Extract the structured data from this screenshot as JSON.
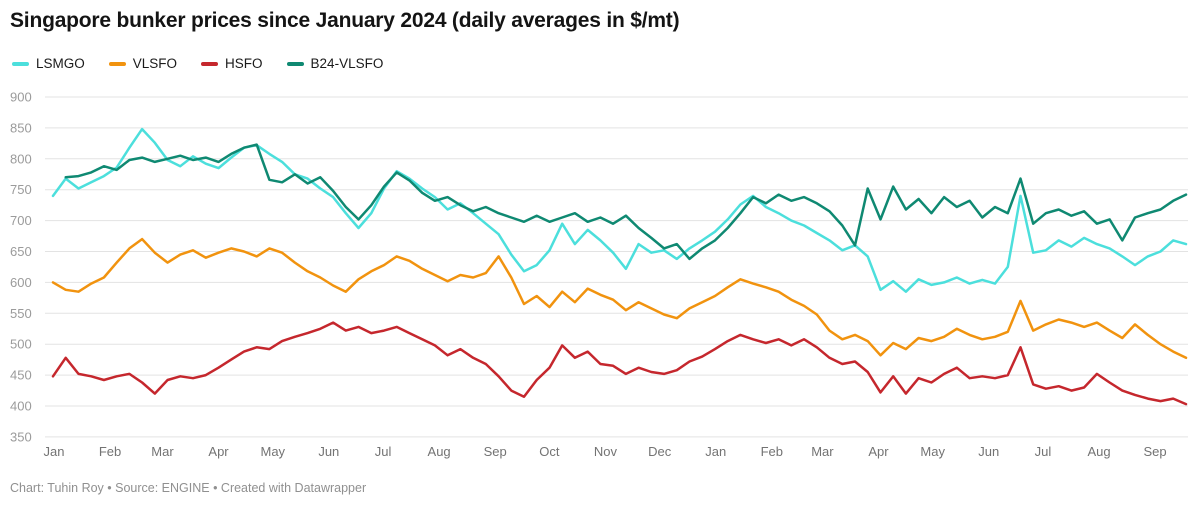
{
  "title": "Singapore bunker prices since January 2024 (daily averages in $/mt)",
  "footer": "Chart: Tuhin Roy • Source: ENGINE • Created with Datawrapper",
  "legend": {
    "items": [
      {
        "label": "LSMGO",
        "color": "#4cdfdc"
      },
      {
        "label": "VLSFO",
        "color": "#f1930f"
      },
      {
        "label": "HSFO",
        "color": "#c5272d"
      },
      {
        "label": "B24-VLSFO",
        "color": "#0f8972"
      }
    ]
  },
  "chart_data": {
    "type": "line",
    "title": "Singapore bunker prices since January 2024 (daily averages in $/mt)",
    "unit": "$/mt",
    "sampling": "weekly estimated averages, Jan 2024 - mid Sep 2025",
    "grid": "horizontal only",
    "legend_position": "top-left",
    "x_axis": {
      "start": "Jan 2024",
      "end": "Sep 2025",
      "months": [
        "Jan",
        "Feb",
        "Mar",
        "Apr",
        "May",
        "Jun",
        "Jul",
        "Aug",
        "Sep",
        "Oct",
        "Nov",
        "Dec",
        "Jan",
        "Feb",
        "Mar",
        "Apr",
        "May",
        "Jun",
        "Jul",
        "Aug",
        "Sep"
      ],
      "month_start_days": [
        0,
        31,
        60,
        91,
        121,
        152,
        182,
        213,
        244,
        274,
        305,
        335,
        366,
        397,
        425,
        456,
        486,
        517,
        547,
        578,
        609
      ]
    },
    "y_axis": {
      "min": 350,
      "max": 900,
      "step": 50,
      "ticks": [
        900,
        850,
        800,
        750,
        700,
        650,
        600,
        550,
        500,
        450,
        400,
        350
      ]
    },
    "series": [
      {
        "name": "LSMGO",
        "color": "#4cdfdc",
        "start_week": 0,
        "values": [
          740,
          768,
          752,
          762,
          772,
          786,
          818,
          848,
          826,
          798,
          788,
          804,
          792,
          785,
          802,
          818,
          822,
          808,
          795,
          775,
          768,
          752,
          738,
          712,
          688,
          712,
          752,
          780,
          768,
          752,
          738,
          718,
          728,
          712,
          695,
          678,
          645,
          618,
          628,
          652,
          695,
          662,
          685,
          668,
          648,
          622,
          662,
          648,
          652,
          638,
          655,
          668,
          682,
          702,
          726,
          740,
          722,
          712,
          700,
          692,
          680,
          668,
          652,
          660,
          642,
          588,
          602,
          585,
          605,
          596,
          600,
          608,
          598,
          604,
          598,
          625,
          740,
          648,
          652,
          668,
          658,
          672,
          662,
          655,
          642,
          628,
          642,
          650,
          668,
          662
        ]
      },
      {
        "name": "VLSFO",
        "color": "#f1930f",
        "start_week": 0,
        "values": [
          600,
          588,
          585,
          598,
          608,
          632,
          655,
          670,
          648,
          632,
          645,
          652,
          640,
          648,
          655,
          650,
          642,
          655,
          648,
          632,
          618,
          608,
          595,
          585,
          605,
          618,
          628,
          642,
          635,
          622,
          612,
          602,
          612,
          608,
          615,
          642,
          608,
          565,
          578,
          560,
          585,
          568,
          590,
          580,
          572,
          555,
          568,
          558,
          548,
          542,
          558,
          568,
          578,
          592,
          605,
          598,
          592,
          585,
          572,
          562,
          548,
          522,
          508,
          515,
          505,
          482,
          502,
          492,
          510,
          505,
          512,
          525,
          515,
          508,
          512,
          520,
          570,
          522,
          532,
          540,
          535,
          528,
          535,
          522,
          510,
          532,
          515,
          500,
          488,
          478
        ]
      },
      {
        "name": "HSFO",
        "color": "#c5272d",
        "start_week": 0,
        "values": [
          448,
          478,
          452,
          448,
          442,
          448,
          452,
          438,
          420,
          442,
          448,
          445,
          450,
          462,
          475,
          488,
          495,
          492,
          505,
          512,
          518,
          525,
          535,
          522,
          528,
          518,
          522,
          528,
          518,
          508,
          498,
          482,
          492,
          478,
          468,
          448,
          425,
          415,
          442,
          462,
          498,
          478,
          488,
          468,
          465,
          452,
          462,
          455,
          452,
          458,
          472,
          480,
          492,
          505,
          515,
          508,
          502,
          508,
          498,
          508,
          495,
          478,
          468,
          472,
          455,
          422,
          448,
          420,
          445,
          438,
          452,
          462,
          445,
          448,
          445,
          450,
          495,
          435,
          428,
          432,
          425,
          430,
          452,
          438,
          425,
          418,
          412,
          408,
          412,
          403
        ]
      },
      {
        "name": "B24-VLSFO",
        "color": "#0f8972",
        "start_week": 1,
        "values": [
          770,
          772,
          778,
          788,
          782,
          798,
          802,
          795,
          800,
          805,
          798,
          802,
          795,
          808,
          818,
          823,
          766,
          762,
          775,
          760,
          770,
          748,
          722,
          702,
          725,
          755,
          778,
          765,
          745,
          732,
          738,
          725,
          715,
          722,
          712,
          705,
          698,
          708,
          698,
          705,
          712,
          698,
          705,
          695,
          708,
          688,
          672,
          655,
          662,
          638,
          655,
          668,
          688,
          712,
          738,
          728,
          742,
          732,
          738,
          728,
          715,
          692,
          660,
          752,
          702,
          755,
          718,
          735,
          712,
          738,
          722,
          732,
          705,
          722,
          712,
          768,
          695,
          712,
          718,
          708,
          715,
          695,
          702,
          668,
          705,
          712,
          718,
          732,
          742
        ]
      }
    ]
  }
}
